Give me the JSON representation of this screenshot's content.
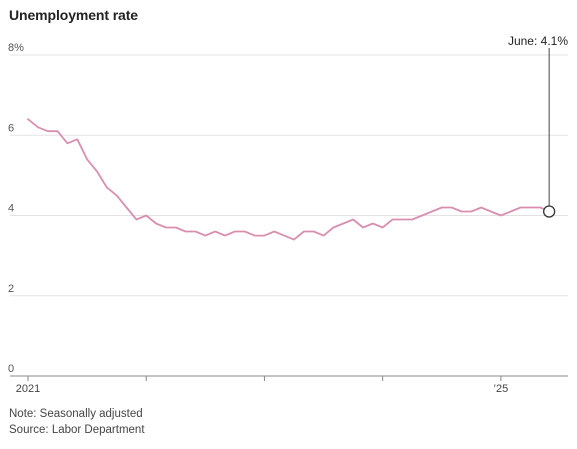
{
  "chart_data": {
    "type": "line",
    "title": "Unemployment rate",
    "xlabel": "",
    "ylabel": "",
    "ylim": [
      0,
      8
    ],
    "y_ticks": [
      {
        "value": 0,
        "label": "0"
      },
      {
        "value": 2,
        "label": "2"
      },
      {
        "value": 4,
        "label": "4"
      },
      {
        "value": 6,
        "label": "6"
      },
      {
        "value": 8,
        "label": "8%"
      }
    ],
    "x_ticks": [
      {
        "value": 0,
        "label": "2021"
      },
      {
        "value": 12,
        "label": ""
      },
      {
        "value": 24,
        "label": ""
      },
      {
        "value": 36,
        "label": ""
      },
      {
        "value": 48,
        "label": "’25"
      }
    ],
    "x_range": [
      0,
      54
    ],
    "grid": true,
    "line_color": "#d98fb0",
    "series": [
      {
        "values": [
          6.4,
          6.2,
          6.1,
          6.1,
          5.8,
          5.9,
          5.4,
          5.1,
          4.7,
          4.5,
          4.2,
          3.9,
          4.0,
          3.8,
          3.7,
          3.7,
          3.6,
          3.6,
          3.5,
          3.6,
          3.5,
          3.6,
          3.6,
          3.5,
          3.5,
          3.6,
          3.5,
          3.4,
          3.6,
          3.6,
          3.5,
          3.7,
          3.8,
          3.9,
          3.7,
          3.8,
          3.7,
          3.9,
          3.9,
          3.9,
          4.0,
          4.1,
          4.2,
          4.2,
          4.1,
          4.1,
          4.2,
          4.1,
          4.0,
          4.1,
          4.2,
          4.2,
          4.2,
          4.1
        ]
      }
    ],
    "annotation": {
      "text": "June: 4.1%",
      "value": 4.1
    }
  },
  "footer": {
    "note": "Note: Seasonally adjusted",
    "source": "Source: Labor Department"
  }
}
